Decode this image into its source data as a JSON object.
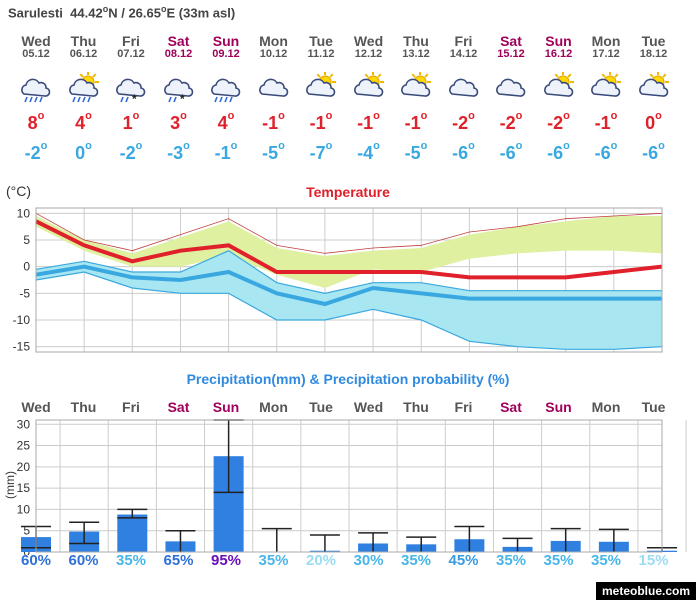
{
  "location": {
    "name": "Sarulesti",
    "lat": "44.42",
    "lat_hemi": "N",
    "lon": "26.65",
    "lon_hemi": "E",
    "alt": "(33m asl)"
  },
  "days": [
    {
      "name": "Wed",
      "date": "05.12",
      "weekend": false,
      "icon": "rain-cloud-icon",
      "tmax": "8",
      "tmin": "-2"
    },
    {
      "name": "Thu",
      "date": "06.12",
      "weekend": false,
      "icon": "sun-cloud-rain-icon",
      "tmax": "4",
      "tmin": "0"
    },
    {
      "name": "Fri",
      "date": "07.12",
      "weekend": false,
      "icon": "sleet-cloud-icon",
      "tmax": "1",
      "tmin": "-2"
    },
    {
      "name": "Sat",
      "date": "08.12",
      "weekend": true,
      "icon": "sleet-cloud-icon",
      "tmax": "3",
      "tmin": "-3"
    },
    {
      "name": "Sun",
      "date": "09.12",
      "weekend": true,
      "icon": "rain-cloud-icon",
      "tmax": "4",
      "tmin": "-1"
    },
    {
      "name": "Mon",
      "date": "10.12",
      "weekend": false,
      "icon": "cloud-icon",
      "tmax": "-1",
      "tmin": "-5"
    },
    {
      "name": "Tue",
      "date": "11.12",
      "weekend": false,
      "icon": "sun-cloud-icon",
      "tmax": "-1",
      "tmin": "-7"
    },
    {
      "name": "Wed",
      "date": "12.12",
      "weekend": false,
      "icon": "sun-cloud-icon",
      "tmax": "-1",
      "tmin": "-4"
    },
    {
      "name": "Thu",
      "date": "13.12",
      "weekend": false,
      "icon": "sun-cloud-icon",
      "tmax": "-1",
      "tmin": "-5"
    },
    {
      "name": "Fri",
      "date": "14.12",
      "weekend": false,
      "icon": "cloud-icon",
      "tmax": "-2",
      "tmin": "-6"
    },
    {
      "name": "Sat",
      "date": "15.12",
      "weekend": true,
      "icon": "cloud-icon",
      "tmax": "-2",
      "tmin": "-6"
    },
    {
      "name": "Sun",
      "date": "16.12",
      "weekend": true,
      "icon": "sun-cloud-icon",
      "tmax": "-2",
      "tmin": "-6"
    },
    {
      "name": "Mon",
      "date": "17.12",
      "weekend": false,
      "icon": "sun-cloud-icon",
      "tmax": "-1",
      "tmin": "-6"
    },
    {
      "name": "Tue",
      "date": "18.12",
      "weekend": false,
      "icon": "sun-cloud-icon",
      "tmax": "0",
      "tmin": "-6"
    }
  ],
  "colors": {
    "max": "#e0202a",
    "min": "#3aa8e0",
    "band_max": "#dff0a0",
    "band_min": "#a8e6f2",
    "bar": "#2f80e0",
    "weekend": "#a0005a"
  },
  "chart_data": [
    {
      "type": "line",
      "title": "Temperature",
      "ylabel": "(°C)",
      "ylim": [
        -16,
        11
      ],
      "yticks": [
        10,
        5,
        0,
        -5,
        -10,
        -15
      ],
      "categories": [
        "Wed",
        "Thu",
        "Fri",
        "Sat",
        "Sun",
        "Mon",
        "Tue",
        "Wed",
        "Thu",
        "Fri",
        "Sat",
        "Sun",
        "Mon",
        "Tue"
      ],
      "x_index": [
        0,
        1,
        2,
        3,
        4,
        5,
        6,
        7,
        8,
        9,
        10,
        11,
        12,
        13
      ],
      "series": [
        {
          "name": "max",
          "values": [
            8.5,
            4,
            1,
            3,
            4,
            -1,
            -1,
            -1,
            -1,
            -2,
            -2,
            -2,
            -1,
            0
          ]
        },
        {
          "name": "min",
          "values": [
            -1.5,
            0,
            -2,
            -2.5,
            -1,
            -5,
            -7,
            -4,
            -5,
            -6,
            -6,
            -6,
            -6,
            -6
          ]
        }
      ],
      "band_max": {
        "upper": [
          9.5,
          5,
          2.5,
          5.5,
          8.5,
          3.5,
          2,
          3,
          3.5,
          6,
          7.5,
          8.5,
          9.5,
          9.5
        ],
        "lower": [
          7.5,
          3,
          0,
          0,
          2,
          -1.5,
          -4,
          -0.5,
          -1,
          1.5,
          2.5,
          3,
          3,
          2.5
        ]
      },
      "band_min": {
        "upper": [
          -0.5,
          1,
          -1,
          -1,
          3,
          -3,
          -5,
          -3,
          -3,
          -4.5,
          -4.5,
          -4.5,
          -4.5,
          -4.5
        ],
        "lower": [
          -2.5,
          -1,
          -4,
          -5,
          -5,
          -10,
          -10,
          -8,
          -10,
          -14,
          -15,
          -15.5,
          -15.5,
          -15
        ]
      },
      "envelope_upper": [
        10,
        5,
        3,
        6,
        9,
        4,
        2.5,
        3.5,
        4,
        6.5,
        7.5,
        9,
        9.5,
        10
      ],
      "envelope_lower": [
        -3,
        -1.5,
        -4.5,
        -5.5,
        -5.5,
        -10,
        -10.5,
        -8.5,
        -10.5,
        -14,
        -15,
        -15.5,
        -15.5,
        -15
      ]
    },
    {
      "type": "bar",
      "title": "Precipitation(mm) & Precipitation probability (%)",
      "ylabel": "(mm)",
      "ylim": [
        0,
        31
      ],
      "yticks": [
        30,
        25,
        20,
        15,
        10,
        5,
        0
      ],
      "categories": [
        "Wed",
        "Thu",
        "Fri",
        "Sat",
        "Sun",
        "Mon",
        "Tue",
        "Wed",
        "Thu",
        "Fri",
        "Sat",
        "Sun",
        "Mon",
        "Tue"
      ],
      "values": [
        3.5,
        4.8,
        8.8,
        2.5,
        22.5,
        0,
        0.3,
        2,
        1.8,
        3,
        1.2,
        2.6,
        2.4,
        0.3
      ],
      "error_low": [
        1,
        2,
        8,
        0,
        14,
        0,
        0,
        0,
        0,
        0,
        0,
        0,
        0,
        0
      ],
      "error_high": [
        6,
        7,
        10,
        5,
        31,
        5.5,
        4,
        4.5,
        3.5,
        6,
        3.2,
        5.5,
        5.3,
        1
      ],
      "probability": [
        "60%",
        "60%",
        "35%",
        "65%",
        "95%",
        "35%",
        "20%",
        "30%",
        "35%",
        "45%",
        "35%",
        "35%",
        "35%",
        "15%"
      ],
      "probability_colors": [
        "#2f70d8",
        "#2f70d8",
        "#48b6e8",
        "#2f70d8",
        "#6a10b8",
        "#48b6e8",
        "#9adcf4",
        "#48b6e8",
        "#48b6e8",
        "#3a9be0",
        "#48b6e8",
        "#48b6e8",
        "#48b6e8",
        "#9adcf4"
      ]
    }
  ],
  "brand": "meteoblue.com"
}
